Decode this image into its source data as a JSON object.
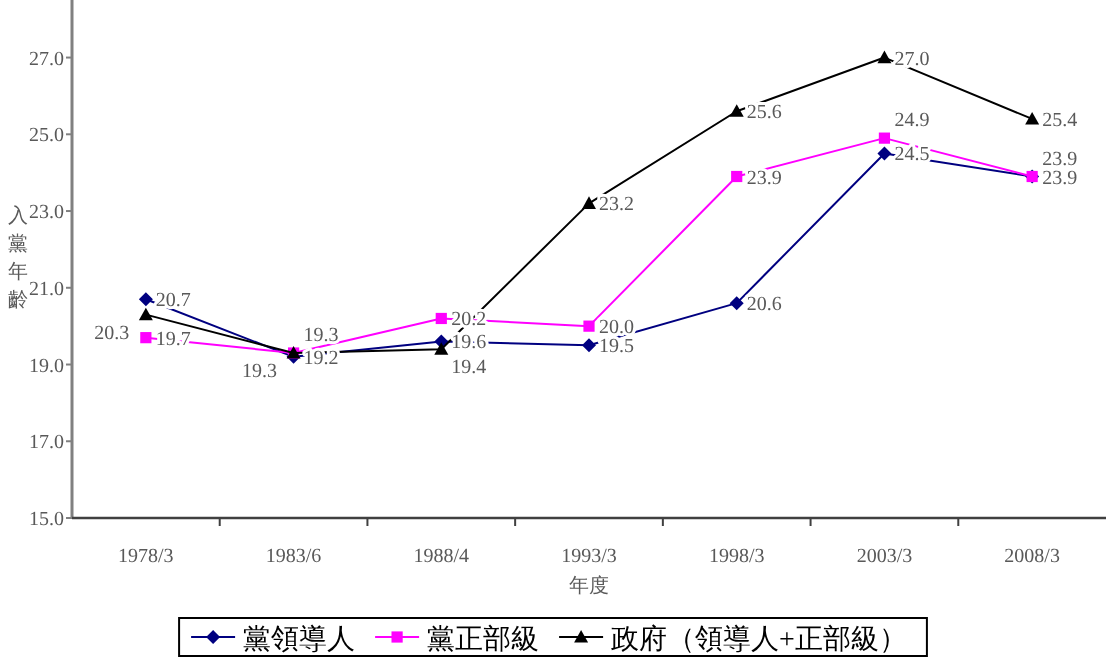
{
  "chart_data": {
    "type": "line",
    "xlabel": "年度",
    "ylabel": "入黨年齡",
    "categories": [
      "1978/3",
      "1983/6",
      "1988/4",
      "1993/3",
      "1998/3",
      "2003/3",
      "2008/3"
    ],
    "series": [
      {
        "name": "黨領導人",
        "color": "#000080",
        "marker": "diamond",
        "values": [
          20.7,
          19.2,
          19.6,
          19.5,
          20.6,
          24.5,
          23.9
        ],
        "value_labels": [
          "20.7",
          "19.2",
          "19.6",
          "19.5",
          "20.6",
          "24.5",
          "23.9"
        ]
      },
      {
        "name": "黨正部級",
        "color": "#ff00ff",
        "marker": "square",
        "values": [
          19.7,
          19.3,
          20.2,
          20.0,
          23.9,
          24.9,
          23.9
        ],
        "value_labels": [
          "19.7",
          "19.3",
          "20.2",
          "20.0",
          "23.9",
          "24.9",
          "23.9"
        ]
      },
      {
        "name": "政府（領導人+正部級）",
        "color": "#000000",
        "marker": "triangle",
        "values": [
          20.3,
          19.3,
          19.4,
          23.2,
          25.6,
          27.0,
          25.4
        ],
        "value_labels": [
          "20.3",
          "19.3",
          "19.4",
          "23.2",
          "25.6",
          "27.0",
          "25.4"
        ]
      }
    ],
    "ylim": [
      15,
      28.5
    ],
    "yticks": [
      {
        "value": 15,
        "label": "15.0"
      },
      {
        "value": 17,
        "label": "17.0"
      },
      {
        "value": 19,
        "label": "19.0"
      },
      {
        "value": 21,
        "label": "21.0"
      },
      {
        "value": 23,
        "label": "23.0"
      },
      {
        "value": 25,
        "label": "25.0"
      },
      {
        "value": 27,
        "label": "27.0"
      }
    ],
    "grid": false,
    "legend": "bottom",
    "line_style": "solid"
  }
}
